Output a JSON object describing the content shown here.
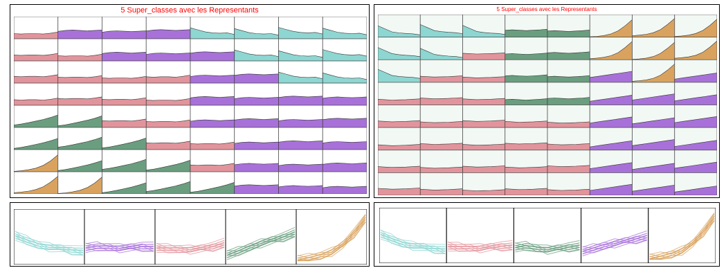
{
  "colors": {
    "cyan": "#8ed6d2",
    "purple": "#a871d9",
    "pink": "#e2949c",
    "green": "#6a9e7f",
    "orange": "#d9a35f",
    "cell_bg_left": "#ffffff",
    "cell_bg_right": "#f2f8f4",
    "title": "#ff0000"
  },
  "chart_data": [
    {
      "type": "area",
      "panel": "top-left",
      "title": "5 Super_classes avec les Representants",
      "rows": 8,
      "cols": 8,
      "grid_classes": [
        [
          "pink",
          "purple",
          "purple",
          "purple",
          "cyan",
          "cyan",
          "cyan",
          "cyan"
        ],
        [
          "pink",
          "pink",
          "purple",
          "purple",
          "purple",
          "cyan",
          "cyan",
          "cyan"
        ],
        [
          "pink",
          "pink",
          "pink",
          "pink",
          "purple",
          "purple",
          "cyan",
          "cyan"
        ],
        [
          "pink",
          "pink",
          "pink",
          "pink",
          "purple",
          "purple",
          "purple",
          "purple"
        ],
        [
          "green",
          "green",
          "pink",
          "pink",
          "purple",
          "purple",
          "purple",
          "purple"
        ],
        [
          "green",
          "green",
          "green",
          "pink",
          "pink",
          "purple",
          "purple",
          "purple"
        ],
        [
          "orange",
          "green",
          "green",
          "green",
          "pink",
          "purple",
          "purple",
          "purple"
        ],
        [
          "orange",
          "orange",
          "green",
          "green",
          "green",
          "purple",
          "purple",
          "purple"
        ]
      ],
      "class_shapes": {
        "cyan": [
          0.55,
          0.45,
          0.35,
          0.3,
          0.28,
          0.3,
          0.22
        ],
        "purple": [
          0.35,
          0.4,
          0.42,
          0.4,
          0.38,
          0.4,
          0.42
        ],
        "pink": [
          0.3,
          0.28,
          0.3,
          0.3,
          0.28,
          0.32,
          0.38
        ],
        "green": [
          0.1,
          0.15,
          0.22,
          0.3,
          0.38,
          0.48,
          0.6
        ],
        "orange": [
          0.02,
          0.05,
          0.1,
          0.18,
          0.32,
          0.55,
          0.85
        ]
      }
    },
    {
      "type": "area",
      "panel": "top-right",
      "title": "5 Super_classes avec les Representants",
      "rows": 8,
      "cols": 8,
      "grid_classes": [
        [
          "cyan",
          "cyan",
          "cyan",
          "green",
          "green",
          "orange",
          "orange",
          "orange"
        ],
        [
          "cyan",
          "cyan",
          "pink",
          "green",
          "green",
          "orange",
          "orange",
          "orange"
        ],
        [
          "cyan",
          "pink",
          "pink",
          "green",
          "green",
          "purple",
          "orange",
          "purple"
        ],
        [
          "pink",
          "pink",
          "pink",
          "green",
          "green",
          "purple",
          "purple",
          "purple"
        ],
        [
          "pink",
          "pink",
          "pink",
          "pink",
          "pink",
          "purple",
          "purple",
          "purple"
        ],
        [
          "pink",
          "pink",
          "pink",
          "pink",
          "pink",
          "purple",
          "purple",
          "purple"
        ],
        [
          "pink",
          "pink",
          "pink",
          "pink",
          "pink",
          "purple",
          "purple",
          "purple"
        ],
        [
          "pink",
          "pink",
          "pink",
          "pink",
          "pink",
          "purple",
          "purple",
          "purple"
        ]
      ],
      "class_shapes": {
        "cyan": [
          0.6,
          0.45,
          0.3,
          0.25,
          0.22,
          0.2,
          0.15
        ],
        "purple": [
          0.2,
          0.25,
          0.3,
          0.35,
          0.4,
          0.45,
          0.5
        ],
        "pink": [
          0.3,
          0.28,
          0.26,
          0.27,
          0.28,
          0.3,
          0.32
        ],
        "green": [
          0.3,
          0.32,
          0.3,
          0.28,
          0.3,
          0.32,
          0.35
        ],
        "orange": [
          0.05,
          0.08,
          0.12,
          0.2,
          0.35,
          0.6,
          0.9
        ]
      }
    },
    {
      "type": "line",
      "panel": "bottom-left",
      "series": [
        {
          "color": "cyan",
          "shape": [
            0.55,
            0.45,
            0.35,
            0.3,
            0.28,
            0.25,
            0.22
          ]
        },
        {
          "color": "purple",
          "shape": [
            0.3,
            0.32,
            0.3,
            0.28,
            0.3,
            0.32,
            0.3
          ]
        },
        {
          "color": "pink",
          "shape": [
            0.3,
            0.28,
            0.26,
            0.25,
            0.28,
            0.32,
            0.38
          ]
        },
        {
          "color": "green",
          "shape": [
            0.15,
            0.22,
            0.3,
            0.38,
            0.45,
            0.52,
            0.6
          ]
        },
        {
          "color": "orange",
          "shape": [
            0.05,
            0.08,
            0.12,
            0.2,
            0.35,
            0.6,
            0.9
          ]
        }
      ]
    },
    {
      "type": "line",
      "panel": "bottom-right",
      "series": [
        {
          "color": "cyan",
          "shape": [
            0.55,
            0.45,
            0.35,
            0.3,
            0.28,
            0.25,
            0.22
          ]
        },
        {
          "color": "pink",
          "shape": [
            0.3,
            0.28,
            0.26,
            0.25,
            0.28,
            0.3,
            0.3
          ]
        },
        {
          "color": "green",
          "shape": [
            0.28,
            0.3,
            0.25,
            0.22,
            0.25,
            0.28,
            0.3
          ]
        },
        {
          "color": "purple",
          "shape": [
            0.2,
            0.25,
            0.3,
            0.35,
            0.4,
            0.45,
            0.5
          ]
        },
        {
          "color": "orange",
          "shape": [
            0.05,
            0.08,
            0.12,
            0.2,
            0.35,
            0.6,
            0.9
          ]
        }
      ]
    }
  ]
}
